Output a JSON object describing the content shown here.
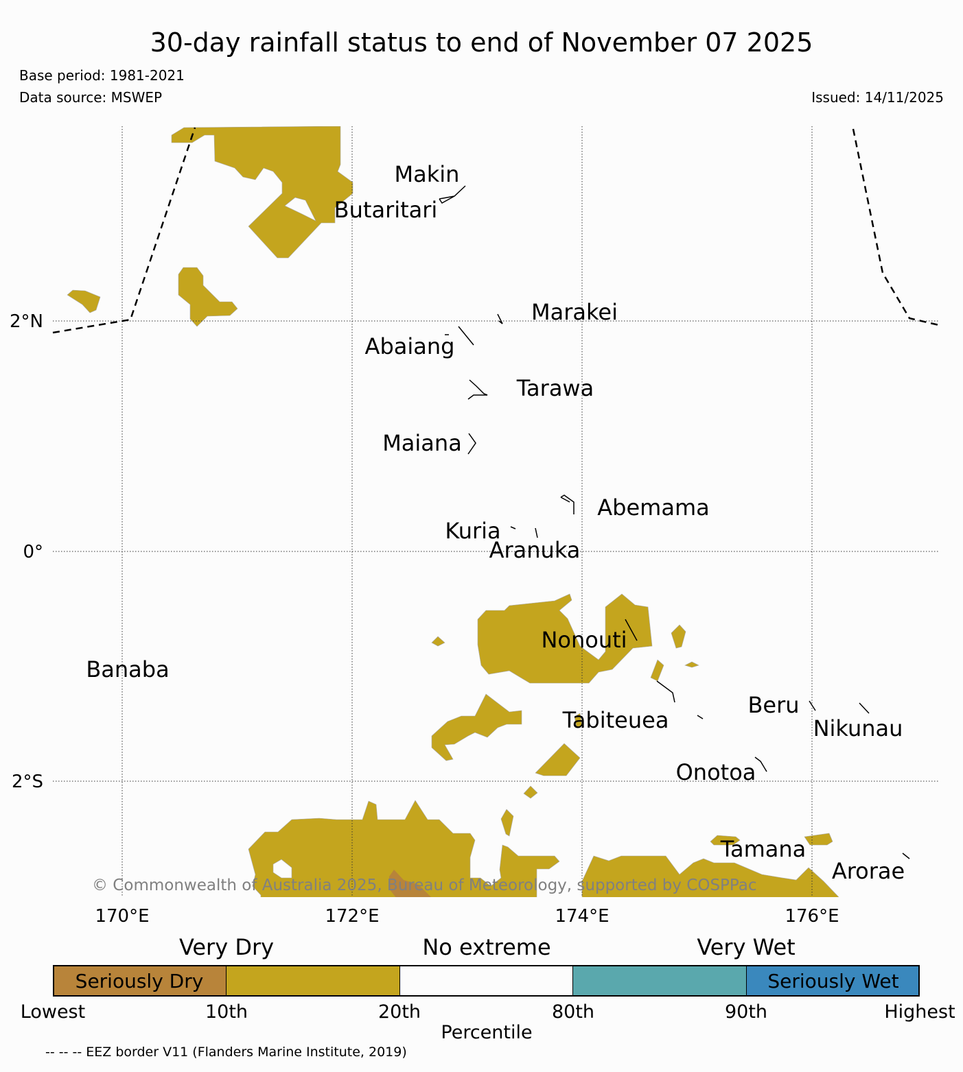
{
  "header": {
    "title": "30-day rainfall status to end of November 07 2025",
    "base_period": "Base period: 1981-2021",
    "data_source": "Data source: MSWEP",
    "issued": "Issued: 14/11/2025"
  },
  "map": {
    "lat_labels": [
      "2°N",
      "0°",
      "2°S"
    ],
    "lon_labels": [
      "170°E",
      "172°E",
      "174°E",
      "176°E"
    ],
    "islands": [
      "Makin",
      "Butaritari",
      "Marakei",
      "Abaiang",
      "Tarawa",
      "Maiana",
      "Abemama",
      "Kuria",
      "Aranuka",
      "Nonouti",
      "Banaba",
      "Tabiteuea",
      "Beru",
      "Nikunau",
      "Onotoa",
      "Tamana",
      "Arorae"
    ],
    "copyright": "© Commonwealth of Australia 2025, Bureau of Meteorology, supported by COSPPac"
  },
  "legend": {
    "category_heads": [
      "Very Dry",
      "No extreme",
      "Very Wet"
    ],
    "segments": [
      {
        "label": "Seriously Dry",
        "color": "#b8843a"
      },
      {
        "label": "",
        "color": "#c4a51e"
      },
      {
        "label": "",
        "color": "#fcfcfc"
      },
      {
        "label": "",
        "color": "#5aa8ad"
      },
      {
        "label": "Seriously Wet",
        "color": "#3a88bd"
      }
    ],
    "ticks": [
      "Lowest",
      "10th",
      "20th",
      "80th",
      "90th",
      "Highest"
    ],
    "axis_title": "Percentile"
  },
  "footer": {
    "eez_note": "-- -- -- EEZ border V11 (Flanders Marine Institute, 2019)"
  },
  "colors": {
    "very_dry": "#c4a51e",
    "seriously_dry": "#b8843a",
    "no_extreme": "#fcfcfc",
    "very_wet": "#5aa8ad",
    "seriously_wet": "#3a88bd"
  }
}
